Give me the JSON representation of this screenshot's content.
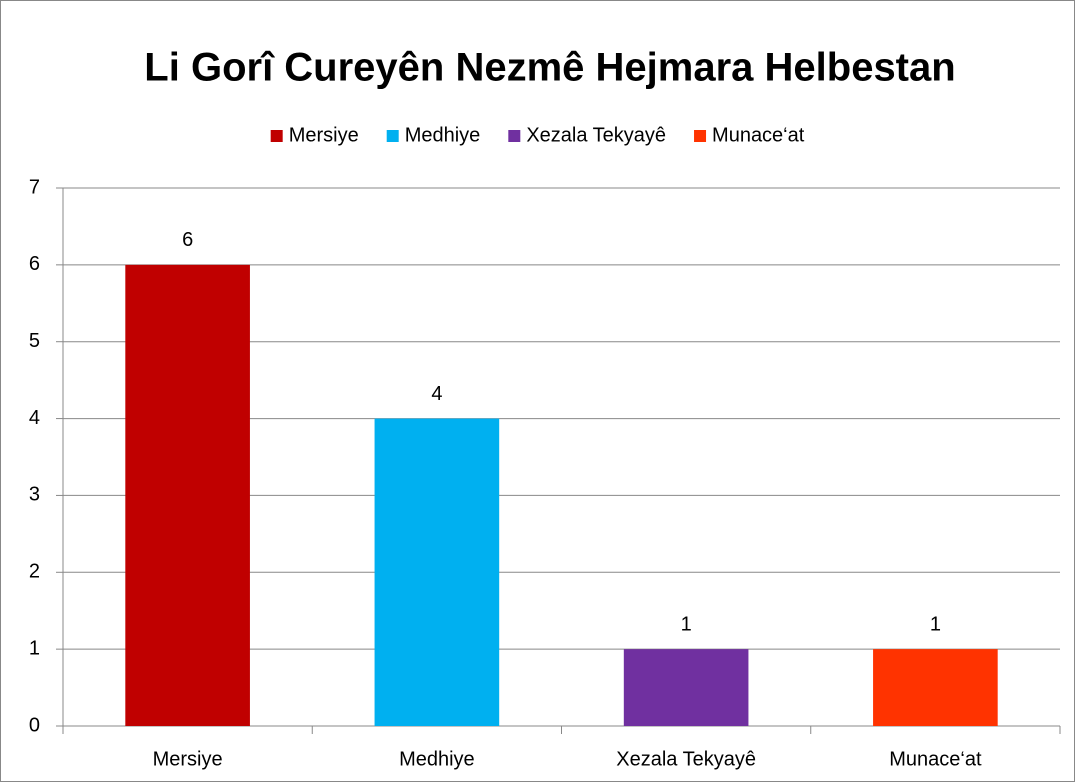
{
  "chart_data": {
    "type": "bar",
    "title": "Li Gorî Cureyên Nezmê Hejmara Helbestan",
    "categories": [
      "Mersiye",
      "Medhiye",
      "Xezala Tekyayê",
      "Munace‘at"
    ],
    "values": [
      6,
      4,
      1,
      1
    ],
    "colors": [
      "#c00000",
      "#00b0f0",
      "#7030a0",
      "#ff3300"
    ],
    "ylim": [
      0,
      7
    ],
    "yticks": [
      0,
      1,
      2,
      3,
      4,
      5,
      6,
      7
    ],
    "grid": true,
    "legend": "top"
  }
}
